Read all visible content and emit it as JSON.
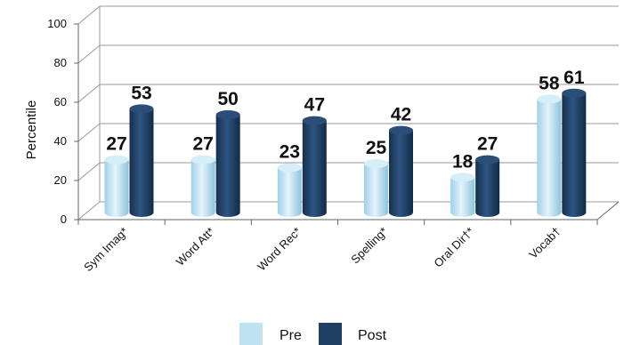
{
  "chart_data": {
    "type": "bar",
    "categories": [
      "Sym Imag*",
      "Word Att*",
      "Word Rec*",
      "Spelling*",
      "Oral Dir†*",
      "Vocab†"
    ],
    "series": [
      {
        "name": "Pre",
        "values": [
          27,
          27,
          23,
          25,
          18,
          58
        ],
        "color": "#bfe3f3"
      },
      {
        "name": "Post",
        "values": [
          53,
          50,
          47,
          42,
          27,
          61
        ],
        "color": "#1f3f63"
      }
    ],
    "title": "",
    "xlabel": "",
    "ylabel": "Percentile",
    "ylim": [
      0,
      100
    ],
    "yticks": [
      0,
      20,
      40,
      60,
      80,
      100
    ],
    "grid": true,
    "legend_position": "bottom",
    "style": "3d-cylinder"
  }
}
